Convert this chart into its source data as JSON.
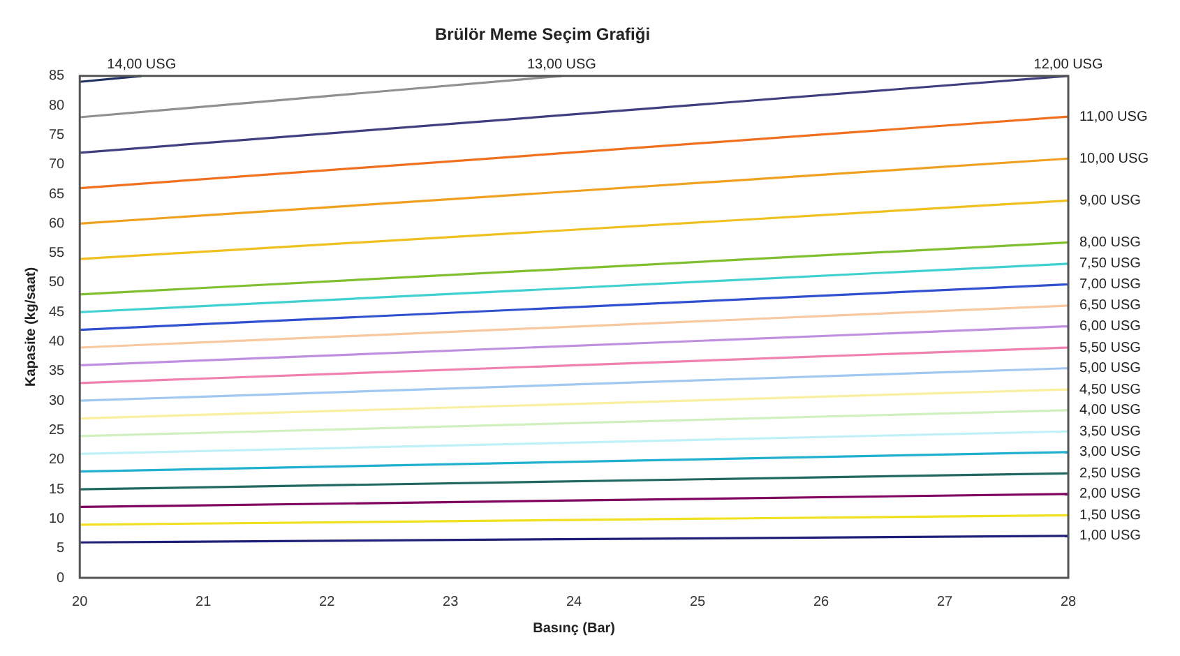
{
  "chart_data": {
    "type": "line",
    "title": "Brülör Meme Seçim Grafiği",
    "xlabel": "Basınç (Bar)",
    "ylabel": "Kapasite (kg/saat)",
    "x": [
      20,
      28
    ],
    "xlim": [
      20,
      28
    ],
    "xticks": [
      20,
      21,
      22,
      23,
      24,
      25,
      26,
      27,
      28
    ],
    "ylim": [
      0,
      85
    ],
    "yticks": [
      0,
      5,
      10,
      15,
      20,
      25,
      30,
      35,
      40,
      45,
      50,
      55,
      60,
      65,
      70,
      75,
      80,
      85
    ],
    "grid": false,
    "legend": false,
    "marker": "none",
    "line_style": "solid",
    "series": [
      {
        "name": "1,00 USG",
        "color": "#1f1f7a",
        "values": [
          6,
          7.1
        ]
      },
      {
        "name": "1,50 USG",
        "color": "#f0e020",
        "values": [
          9,
          10.6
        ]
      },
      {
        "name": "2,00 USG",
        "color": "#800060",
        "values": [
          12,
          14.2
        ]
      },
      {
        "name": "2,50 USG",
        "color": "#206860",
        "values": [
          15,
          17.7
        ]
      },
      {
        "name": "3,00 USG",
        "color": "#20b0d0",
        "values": [
          18,
          21.3
        ]
      },
      {
        "name": "3,50 USG",
        "color": "#c0f0f8",
        "values": [
          21,
          24.8
        ]
      },
      {
        "name": "4,00 USG",
        "color": "#d0f0c0",
        "values": [
          24,
          28.4
        ]
      },
      {
        "name": "4,50 USG",
        "color": "#f8f0a0",
        "values": [
          27,
          31.9
        ]
      },
      {
        "name": "5,00 USG",
        "color": "#a0c8f0",
        "values": [
          30,
          35.5
        ]
      },
      {
        "name": "5,50 USG",
        "color": "#f080b0",
        "values": [
          33,
          39
        ]
      },
      {
        "name": "6,00 USG",
        "color": "#c090e0",
        "values": [
          36,
          42.6
        ]
      },
      {
        "name": "6,50 USG",
        "color": "#f8c8a0",
        "values": [
          39,
          46.1
        ]
      },
      {
        "name": "7,00 USG",
        "color": "#3050d0",
        "values": [
          42,
          49.7
        ]
      },
      {
        "name": "7,50 USG",
        "color": "#40d0d0",
        "values": [
          45,
          53.2
        ]
      },
      {
        "name": "8,00 USG",
        "color": "#80c030",
        "values": [
          48,
          56.8
        ]
      },
      {
        "name": "9,00 USG",
        "color": "#f0c020",
        "values": [
          54,
          63.9
        ]
      },
      {
        "name": "10,00 USG",
        "color": "#f0a020",
        "values": [
          60,
          71
        ]
      },
      {
        "name": "11,00 USG",
        "color": "#f07020",
        "values": [
          66,
          78.1
        ]
      },
      {
        "name": "12,00 USG",
        "color": "#404080",
        "values": [
          72,
          85
        ]
      },
      {
        "name": "13,00 USG",
        "color": "#909090",
        "x": [
          20,
          23.9
        ],
        "values": [
          78,
          85
        ]
      },
      {
        "name": "14,00 USG",
        "color": "#203060",
        "x": [
          20,
          20.5
        ],
        "values": [
          84,
          85
        ]
      }
    ]
  }
}
